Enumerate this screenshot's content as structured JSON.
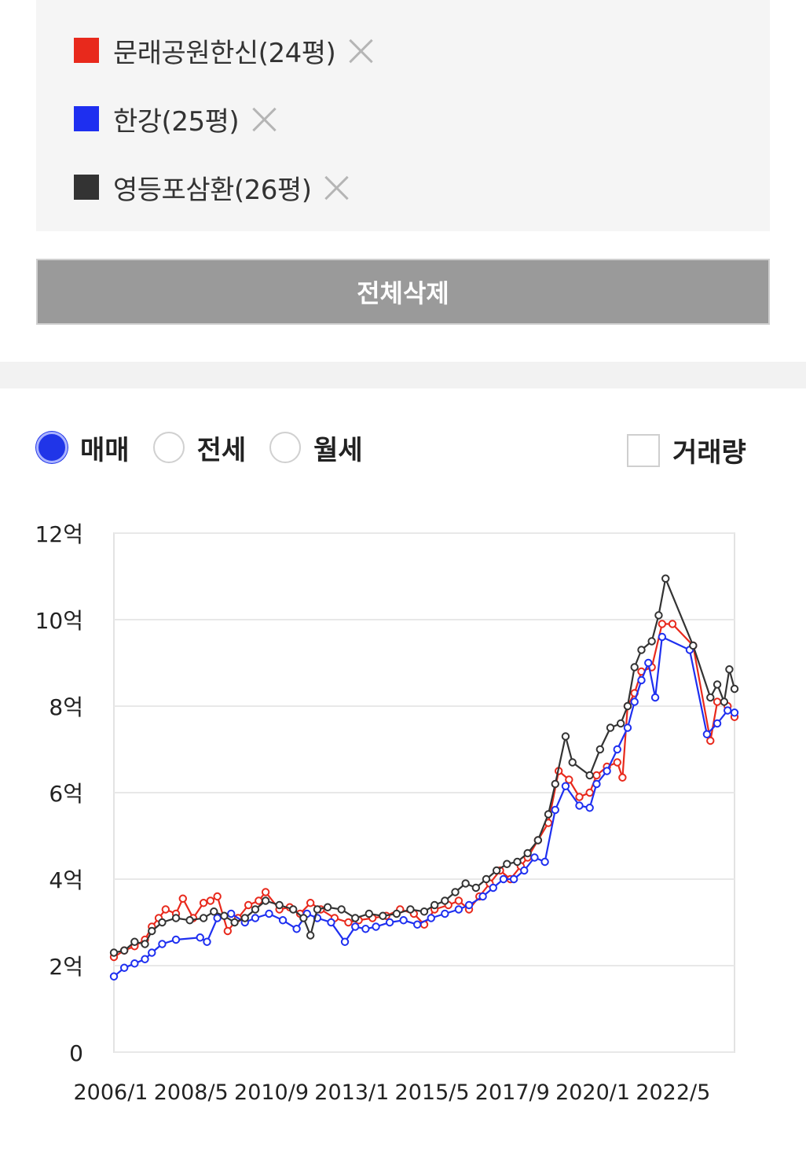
{
  "compare": {
    "items": [
      {
        "name": "문래공원한신(24평)",
        "color": "#e8291c"
      },
      {
        "name": "한강(25평)",
        "color": "#1e2ff0"
      },
      {
        "name": "영등포삼환(26평)",
        "color": "#333333"
      }
    ],
    "delete_all_label": "전체삭제"
  },
  "options": {
    "trade_types": [
      {
        "label": "매매",
        "selected": true
      },
      {
        "label": "전세",
        "selected": false
      },
      {
        "label": "월세",
        "selected": false
      }
    ],
    "volume_label": "거래량",
    "volume_checked": false
  },
  "chart_data": {
    "type": "line",
    "y_ticks": [
      "0",
      "2억",
      "4억",
      "6억",
      "8억",
      "10억",
      "12억"
    ],
    "ylim": [
      0,
      12
    ],
    "x_ticks": [
      "2006/1",
      "2008/5",
      "2010/9",
      "2013/1",
      "2015/5",
      "2017/9",
      "2020/1",
      "2022/5"
    ],
    "xlim": [
      2006.0,
      2024.0
    ],
    "series": [
      {
        "name": "문래공원한신(24평)",
        "color": "#e8291c",
        "points": [
          [
            2006.0,
            2.2
          ],
          [
            2006.3,
            2.35
          ],
          [
            2006.6,
            2.45
          ],
          [
            2006.9,
            2.6
          ],
          [
            2007.1,
            2.9
          ],
          [
            2007.3,
            3.1
          ],
          [
            2007.5,
            3.3
          ],
          [
            2007.8,
            3.2
          ],
          [
            2008.0,
            3.55
          ],
          [
            2008.3,
            3.1
          ],
          [
            2008.6,
            3.45
          ],
          [
            2008.8,
            3.5
          ],
          [
            2009.0,
            3.6
          ],
          [
            2009.3,
            2.8
          ],
          [
            2009.6,
            3.1
          ],
          [
            2009.9,
            3.4
          ],
          [
            2010.2,
            3.5
          ],
          [
            2010.4,
            3.7
          ],
          [
            2010.8,
            3.3
          ],
          [
            2011.1,
            3.35
          ],
          [
            2011.4,
            3.2
          ],
          [
            2011.7,
            3.45
          ],
          [
            2012.0,
            3.3
          ],
          [
            2012.4,
            3.1
          ],
          [
            2012.8,
            3.0
          ],
          [
            2013.1,
            3.05
          ],
          [
            2013.5,
            3.1
          ],
          [
            2013.9,
            3.15
          ],
          [
            2014.3,
            3.3
          ],
          [
            2014.7,
            3.2
          ],
          [
            2015.0,
            2.95
          ],
          [
            2015.3,
            3.3
          ],
          [
            2015.7,
            3.4
          ],
          [
            2016.0,
            3.5
          ],
          [
            2016.3,
            3.3
          ],
          [
            2016.6,
            3.6
          ],
          [
            2016.9,
            3.9
          ],
          [
            2017.2,
            4.2
          ],
          [
            2017.5,
            4.0
          ],
          [
            2017.8,
            4.3
          ],
          [
            2018.0,
            4.5
          ],
          [
            2018.3,
            4.9
          ],
          [
            2018.6,
            5.3
          ],
          [
            2018.9,
            6.5
          ],
          [
            2019.2,
            6.3
          ],
          [
            2019.5,
            5.9
          ],
          [
            2019.8,
            6.0
          ],
          [
            2020.0,
            6.4
          ],
          [
            2020.3,
            6.6
          ],
          [
            2020.6,
            6.7
          ],
          [
            2020.75,
            6.35
          ],
          [
            2020.9,
            8.0
          ],
          [
            2021.1,
            8.3
          ],
          [
            2021.3,
            8.8
          ],
          [
            2021.6,
            8.9
          ],
          [
            2021.9,
            9.9
          ],
          [
            2022.2,
            9.9
          ],
          [
            2022.8,
            9.4
          ],
          [
            2023.3,
            7.2
          ],
          [
            2023.5,
            8.1
          ],
          [
            2023.8,
            8.0
          ],
          [
            2024.0,
            7.75
          ]
        ]
      },
      {
        "name": "한강(25평)",
        "color": "#1e2ff0",
        "points": [
          [
            2006.0,
            1.75
          ],
          [
            2006.3,
            1.95
          ],
          [
            2006.6,
            2.05
          ],
          [
            2006.9,
            2.15
          ],
          [
            2007.1,
            2.3
          ],
          [
            2007.4,
            2.5
          ],
          [
            2007.8,
            2.6
          ],
          [
            2008.5,
            2.65
          ],
          [
            2008.7,
            2.55
          ],
          [
            2009.0,
            3.1
          ],
          [
            2009.4,
            3.2
          ],
          [
            2009.8,
            3.0
          ],
          [
            2010.1,
            3.1
          ],
          [
            2010.5,
            3.2
          ],
          [
            2010.9,
            3.05
          ],
          [
            2011.3,
            2.85
          ],
          [
            2011.6,
            3.2
          ],
          [
            2011.9,
            3.1
          ],
          [
            2012.3,
            3.0
          ],
          [
            2012.7,
            2.55
          ],
          [
            2013.0,
            2.9
          ],
          [
            2013.3,
            2.85
          ],
          [
            2013.6,
            2.9
          ],
          [
            2014.0,
            3.0
          ],
          [
            2014.4,
            3.05
          ],
          [
            2014.8,
            2.95
          ],
          [
            2015.2,
            3.1
          ],
          [
            2015.6,
            3.2
          ],
          [
            2016.0,
            3.3
          ],
          [
            2016.3,
            3.4
          ],
          [
            2016.7,
            3.6
          ],
          [
            2017.0,
            3.8
          ],
          [
            2017.3,
            4.0
          ],
          [
            2017.6,
            4.0
          ],
          [
            2017.9,
            4.2
          ],
          [
            2018.2,
            4.5
          ],
          [
            2018.5,
            4.4
          ],
          [
            2018.8,
            5.6
          ],
          [
            2019.1,
            6.15
          ],
          [
            2019.5,
            5.7
          ],
          [
            2019.8,
            5.65
          ],
          [
            2020.0,
            6.2
          ],
          [
            2020.3,
            6.5
          ],
          [
            2020.6,
            7.0
          ],
          [
            2020.9,
            7.5
          ],
          [
            2021.1,
            8.1
          ],
          [
            2021.3,
            8.6
          ],
          [
            2021.5,
            9.0
          ],
          [
            2021.7,
            8.2
          ],
          [
            2021.9,
            9.6
          ],
          [
            2022.7,
            9.3
          ],
          [
            2023.2,
            7.35
          ],
          [
            2023.5,
            7.6
          ],
          [
            2023.8,
            7.9
          ],
          [
            2024.0,
            7.85
          ]
        ]
      },
      {
        "name": "영등포삼환(26평)",
        "color": "#333333",
        "points": [
          [
            2006.0,
            2.3
          ],
          [
            2006.3,
            2.35
          ],
          [
            2006.6,
            2.55
          ],
          [
            2006.9,
            2.5
          ],
          [
            2007.1,
            2.8
          ],
          [
            2007.4,
            3.0
          ],
          [
            2007.8,
            3.1
          ],
          [
            2008.2,
            3.05
          ],
          [
            2008.6,
            3.1
          ],
          [
            2008.9,
            3.25
          ],
          [
            2009.2,
            3.15
          ],
          [
            2009.5,
            3.0
          ],
          [
            2009.8,
            3.1
          ],
          [
            2010.1,
            3.3
          ],
          [
            2010.4,
            3.5
          ],
          [
            2010.8,
            3.4
          ],
          [
            2011.2,
            3.3
          ],
          [
            2011.5,
            3.1
          ],
          [
            2011.7,
            2.7
          ],
          [
            2011.9,
            3.3
          ],
          [
            2012.2,
            3.35
          ],
          [
            2012.6,
            3.3
          ],
          [
            2013.0,
            3.1
          ],
          [
            2013.4,
            3.2
          ],
          [
            2013.8,
            3.15
          ],
          [
            2014.2,
            3.2
          ],
          [
            2014.6,
            3.3
          ],
          [
            2015.0,
            3.25
          ],
          [
            2015.3,
            3.4
          ],
          [
            2015.6,
            3.5
          ],
          [
            2015.9,
            3.7
          ],
          [
            2016.2,
            3.9
          ],
          [
            2016.5,
            3.8
          ],
          [
            2016.8,
            4.0
          ],
          [
            2017.1,
            4.2
          ],
          [
            2017.4,
            4.35
          ],
          [
            2017.7,
            4.4
          ],
          [
            2018.0,
            4.6
          ],
          [
            2018.3,
            4.9
          ],
          [
            2018.6,
            5.5
          ],
          [
            2018.8,
            6.2
          ],
          [
            2019.1,
            7.3
          ],
          [
            2019.3,
            6.7
          ],
          [
            2019.8,
            6.4
          ],
          [
            2020.1,
            7.0
          ],
          [
            2020.4,
            7.5
          ],
          [
            2020.7,
            7.6
          ],
          [
            2020.9,
            8.0
          ],
          [
            2021.1,
            8.9
          ],
          [
            2021.3,
            9.3
          ],
          [
            2021.6,
            9.5
          ],
          [
            2021.8,
            10.1
          ],
          [
            2022.0,
            10.95
          ],
          [
            2022.8,
            9.4
          ],
          [
            2023.3,
            8.2
          ],
          [
            2023.5,
            8.5
          ],
          [
            2023.7,
            8.1
          ],
          [
            2023.85,
            8.85
          ],
          [
            2024.0,
            8.4
          ]
        ]
      }
    ]
  }
}
